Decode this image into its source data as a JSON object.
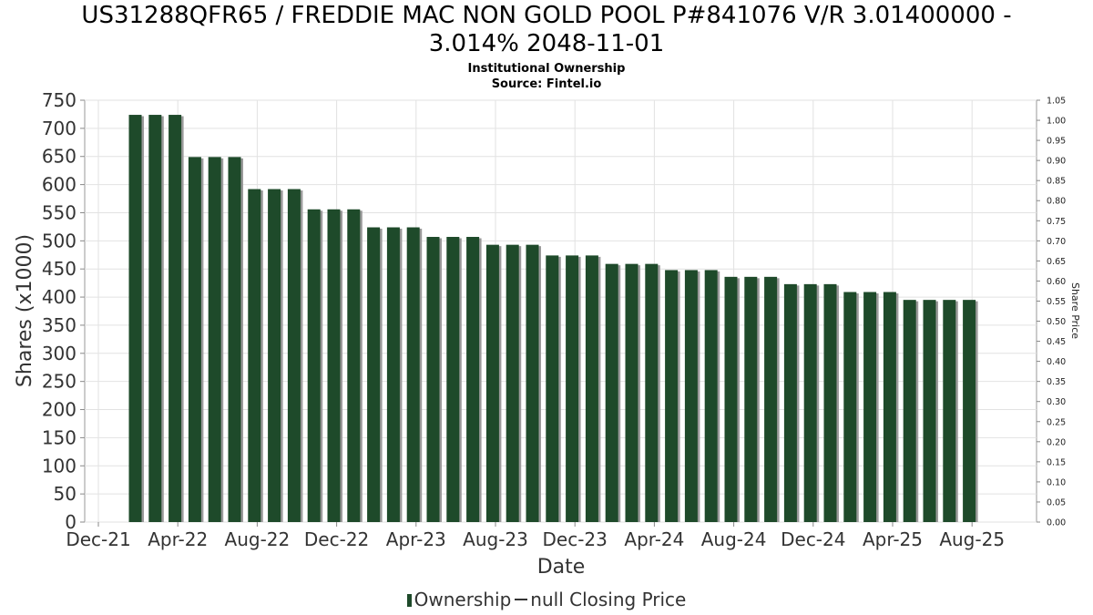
{
  "chart_data": {
    "type": "bar",
    "title_line1": "US31288QFR65 / FREDDIE MAC NON GOLD POOL P#841076 V/R 3.01400000 -",
    "title_line2": "3.014% 2048-11-01",
    "subtitle": "Institutional Ownership",
    "source": "Source: Fintel.io",
    "xlabel": "Date",
    "ylabel": "Shares (x1000)",
    "y2label": "Share Price",
    "ylim": [
      0,
      750
    ],
    "y2lim": [
      0,
      1.05
    ],
    "yticks": [
      "0",
      "50",
      "100",
      "150",
      "200",
      "250",
      "300",
      "350",
      "400",
      "450",
      "500",
      "550",
      "600",
      "650",
      "700",
      "750"
    ],
    "y2ticks": [
      "0.00",
      "0.05",
      "0.10",
      "0.15",
      "0.20",
      "0.25",
      "0.30",
      "0.35",
      "0.40",
      "0.45",
      "0.50",
      "0.55",
      "0.60",
      "0.65",
      "0.70",
      "0.75",
      "0.80",
      "0.85",
      "0.90",
      "0.95",
      "1.00",
      "1.05"
    ],
    "xticks": [
      "Dec-21",
      "Apr-22",
      "Aug-22",
      "Dec-22",
      "Apr-23",
      "Aug-23",
      "Dec-23",
      "Apr-24",
      "Aug-24",
      "Dec-24",
      "Apr-25",
      "Aug-25"
    ],
    "grid": true,
    "bar_color": "#1e4a2a",
    "series": [
      {
        "name": "Ownership",
        "values": [
          724,
          724,
          724,
          649,
          649,
          649,
          592,
          592,
          592,
          556,
          556,
          556,
          524,
          524,
          524,
          507,
          507,
          507,
          493,
          493,
          493,
          474,
          474,
          474,
          459,
          459,
          459,
          448,
          448,
          448,
          436,
          436,
          436,
          423,
          423,
          423,
          409,
          409,
          409,
          395,
          395,
          395,
          395
        ]
      }
    ],
    "legend": {
      "ownership_label": "Ownership",
      "price_label": "null Closing Price"
    }
  }
}
